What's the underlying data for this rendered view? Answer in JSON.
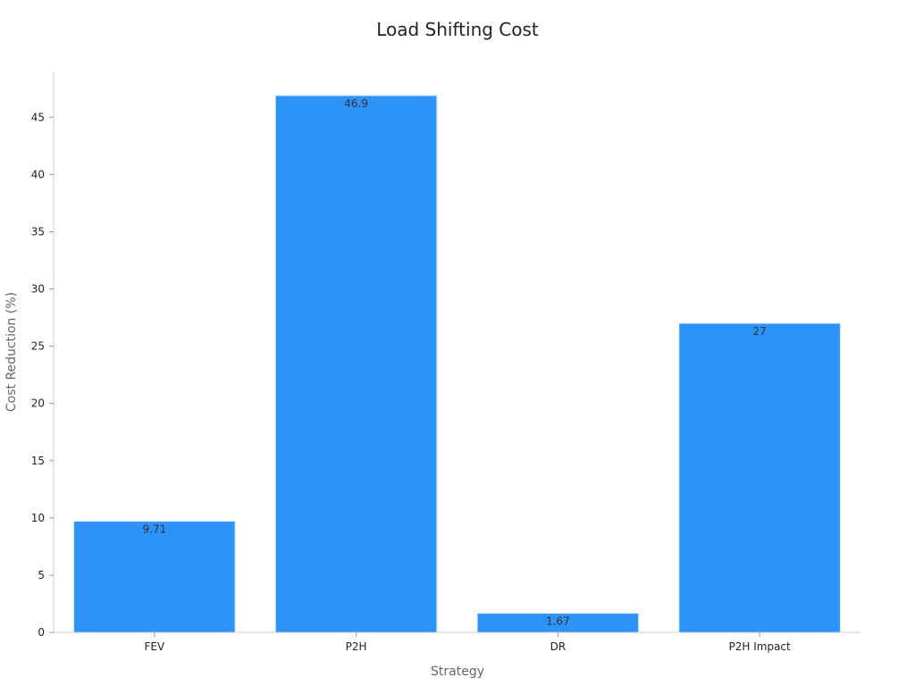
{
  "chart_data": {
    "type": "bar",
    "title": "Load Shifting Cost",
    "xlabel": "Strategy",
    "ylabel": "Cost Reduction (%)",
    "categories": [
      "FEV",
      "P2H",
      "DR",
      "P2H Impact"
    ],
    "values": [
      9.71,
      46.9,
      1.67,
      27
    ],
    "data_labels": [
      "9.71",
      "46.9",
      "1.67",
      "27"
    ],
    "ylim": [
      0,
      49
    ],
    "yticks": [
      0,
      5,
      10,
      15,
      20,
      25,
      30,
      35,
      40,
      45
    ],
    "grid": false,
    "legend": "none",
    "bar_color": "#2e93f9"
  }
}
